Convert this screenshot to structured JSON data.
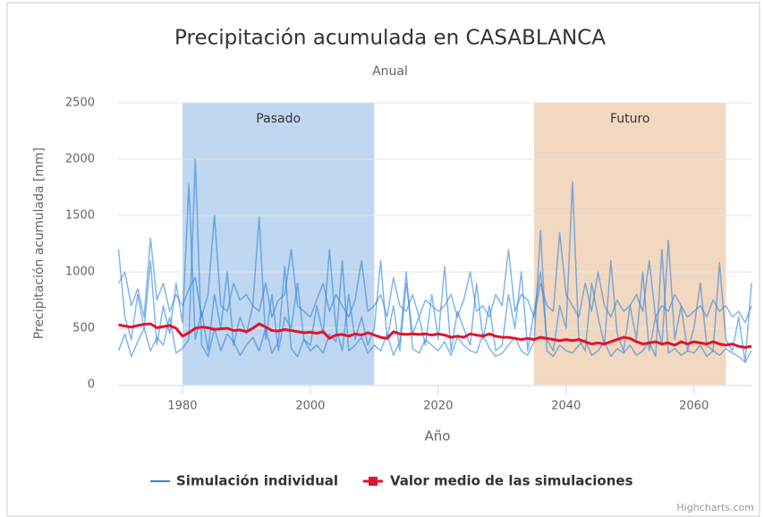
{
  "chart_data": {
    "type": "line",
    "title": "Precipitación acumulada en CASABLANCA",
    "subtitle": "Anual",
    "x_label": "Año",
    "y_label": "Precipitación acumulada [mm]",
    "credit": "Highcharts.com",
    "xlim": [
      1970,
      2069
    ],
    "ylim": [
      0,
      2500
    ],
    "xticks": [
      1980,
      2000,
      2020,
      2040,
      2060
    ],
    "yticks": [
      0,
      500,
      1000,
      1500,
      2000,
      2500
    ],
    "bands": [
      {
        "label": "Pasado",
        "from": 1980,
        "to": 2010,
        "color": "#bfd7f0"
      },
      {
        "label": "Futuro",
        "from": 2035,
        "to": 2065,
        "color": "#f2d8c0"
      }
    ],
    "x": [
      1970,
      1971,
      1972,
      1973,
      1974,
      1975,
      1976,
      1977,
      1978,
      1979,
      1980,
      1981,
      1982,
      1983,
      1984,
      1985,
      1986,
      1987,
      1988,
      1989,
      1990,
      1991,
      1992,
      1993,
      1994,
      1995,
      1996,
      1997,
      1998,
      1999,
      2000,
      2001,
      2002,
      2003,
      2004,
      2005,
      2006,
      2007,
      2008,
      2009,
      2010,
      2011,
      2012,
      2013,
      2014,
      2015,
      2016,
      2017,
      2018,
      2019,
      2020,
      2021,
      2022,
      2023,
      2024,
      2025,
      2026,
      2027,
      2028,
      2029,
      2030,
      2031,
      2032,
      2033,
      2034,
      2035,
      2036,
      2037,
      2038,
      2039,
      2040,
      2041,
      2042,
      2043,
      2044,
      2045,
      2046,
      2047,
      2048,
      2049,
      2050,
      2051,
      2052,
      2053,
      2054,
      2055,
      2056,
      2057,
      2058,
      2059,
      2060,
      2061,
      2062,
      2063,
      2064,
      2065,
      2066,
      2067,
      2068,
      2069
    ],
    "simulations": {
      "name": "Simulación individual",
      "color": "#2f86e0",
      "values": [
        [
          1200,
          600,
          400,
          800,
          500,
          1100,
          350,
          700,
          450,
          900,
          550,
          1780,
          400,
          650,
          300,
          800,
          500,
          1000,
          350,
          600,
          450,
          700,
          1490,
          400,
          800,
          300,
          600,
          500,
          900,
          400,
          350,
          700,
          450,
          1200,
          500,
          300,
          800,
          400,
          600,
          350,
          500,
          1100,
          400,
          700,
          300,
          900,
          450,
          600,
          350,
          800,
          400,
          1050,
          300,
          650,
          500,
          350,
          900,
          400,
          700,
          300,
          350,
          800,
          500,
          1000,
          300,
          650,
          1000,
          400,
          300,
          700,
          500,
          1800,
          400,
          300,
          900,
          600,
          350,
          1100,
          450,
          300,
          700,
          400,
          1000,
          300,
          600,
          350,
          1280,
          400,
          700,
          300,
          500,
          900,
          350,
          300,
          1080,
          400,
          300,
          600,
          200,
          900
        ],
        [
          300,
          450,
          250,
          380,
          500,
          300,
          420,
          350,
          600,
          280,
          320,
          400,
          2000,
          350,
          250,
          500,
          300,
          450,
          380,
          260,
          350,
          420,
          300,
          500,
          280,
          380,
          1050,
          320,
          250,
          400,
          300,
          350,
          280,
          450,
          380,
          1100,
          300,
          350,
          420,
          280,
          350,
          300,
          450,
          260,
          380,
          1000,
          320,
          280,
          400,
          350,
          300,
          380,
          260,
          420,
          350,
          300,
          280,
          450,
          320,
          250,
          280,
          350,
          420,
          300,
          260,
          380,
          1370,
          300,
          250,
          350,
          300,
          280,
          350,
          400,
          260,
          300,
          380,
          250,
          320,
          280,
          350,
          260,
          300,
          380,
          250,
          1200,
          280,
          320,
          260,
          300,
          280,
          350,
          250,
          300,
          260,
          320,
          280,
          250,
          200,
          300
        ],
        [
          900,
          1000,
          700,
          850,
          600,
          1300,
          750,
          900,
          650,
          800,
          700,
          850,
          950,
          600,
          800,
          1500,
          700,
          650,
          900,
          750,
          800,
          700,
          650,
          900,
          600,
          750,
          800,
          1200,
          700,
          650,
          600,
          750,
          900,
          650,
          800,
          700,
          600,
          750,
          1100,
          650,
          700,
          800,
          600,
          950,
          700,
          650,
          800,
          600,
          750,
          700,
          650,
          700,
          800,
          600,
          750,
          1000,
          650,
          700,
          600,
          800,
          700,
          1200,
          650,
          800,
          750,
          600,
          900,
          700,
          650,
          1350,
          800,
          700,
          600,
          900,
          650,
          1000,
          700,
          600,
          750,
          650,
          700,
          800,
          650,
          1100,
          600,
          700,
          650,
          800,
          700,
          600,
          650,
          700,
          600,
          750,
          650,
          700,
          600,
          650,
          550,
          700
        ]
      ]
    },
    "series": [
      {
        "name": "Valor medio de las simulaciones",
        "color": "#e0152c",
        "values": [
          530,
          520,
          510,
          525,
          535,
          540,
          505,
          515,
          525,
          500,
          430,
          460,
          500,
          510,
          505,
          490,
          495,
          500,
          480,
          485,
          470,
          500,
          540,
          510,
          480,
          475,
          490,
          480,
          470,
          460,
          465,
          455,
          470,
          410,
          440,
          445,
          430,
          450,
          440,
          460,
          440,
          420,
          410,
          470,
          450,
          445,
          450,
          445,
          450,
          440,
          450,
          440,
          420,
          430,
          420,
          450,
          440,
          430,
          450,
          430,
          420,
          420,
          410,
          400,
          410,
          400,
          420,
          410,
          400,
          390,
          400,
          390,
          400,
          380,
          360,
          370,
          360,
          380,
          400,
          420,
          410,
          380,
          360,
          370,
          380,
          360,
          370,
          350,
          380,
          360,
          380,
          370,
          360,
          380,
          360,
          350,
          360,
          340,
          330,
          340
        ]
      }
    ]
  }
}
